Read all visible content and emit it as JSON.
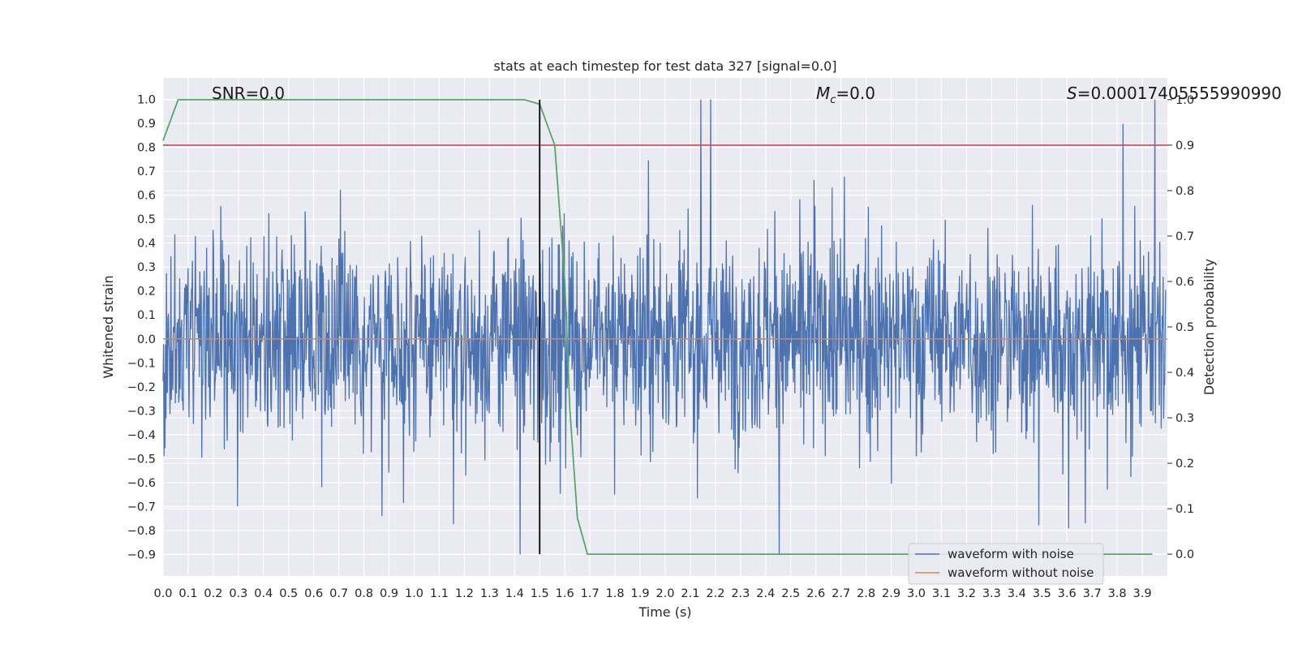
{
  "chart_data": {
    "type": "line",
    "title": "stats at each timestep for test data 327 [signal=0.0]",
    "xlabel": "Time (s)",
    "ylabel": "Whitened strain",
    "ylabel_right": "Detection probability",
    "xlim": [
      0.0,
      4.0
    ],
    "ylim": [
      -0.99,
      1.09
    ],
    "ylim_right": [
      -0.048,
      1.048
    ],
    "x_ticks": [
      "0.0",
      "0.1",
      "0.2",
      "0.3",
      "0.4",
      "0.5",
      "0.6",
      "0.7",
      "0.8",
      "0.9",
      "1.0",
      "1.1",
      "1.2",
      "1.3",
      "1.4",
      "1.5",
      "1.6",
      "1.7",
      "1.8",
      "1.9",
      "2.0",
      "2.1",
      "2.2",
      "2.3",
      "2.4",
      "2.5",
      "2.6",
      "2.7",
      "2.8",
      "2.9",
      "3.0",
      "3.1",
      "3.2",
      "3.3",
      "3.4",
      "3.5",
      "3.6",
      "3.7",
      "3.8",
      "3.9"
    ],
    "y_ticks": [
      "1.0",
      "0.9",
      "0.8",
      "0.7",
      "0.6",
      "0.5",
      "0.4",
      "0.3",
      "0.2",
      "0.1",
      "0.0",
      "−0.1",
      "−0.2",
      "−0.3",
      "−0.4",
      "−0.5",
      "−0.6",
      "−0.7",
      "−0.8",
      "−0.9"
    ],
    "y_ticks_right": [
      "1.0",
      "0.9",
      "0.8",
      "0.7",
      "0.6",
      "0.5",
      "0.4",
      "0.3",
      "0.2",
      "0.1",
      "0.0"
    ],
    "annotations": {
      "snr": "SNR=0.0",
      "mc": "=0.0",
      "mc_symbol": "M",
      "mc_sub": "c",
      "s": "=0.00017405555990990",
      "s_symbol": "S"
    },
    "grid": true,
    "legend_position": "lower-right",
    "series": [
      {
        "name": "waveform with noise",
        "color": "#4c72b0",
        "description": "noisy whitened strain, amplitude roughly -0.9 to 1.0"
      },
      {
        "name": "waveform without noise",
        "color": "#dd8452",
        "constant": 0.0
      },
      {
        "name": "detection probability",
        "color": "#55a868",
        "axis": "right",
        "x": [
          0.0,
          0.06,
          0.12,
          0.2,
          0.5,
          1.0,
          1.4,
          1.44,
          1.5,
          1.56,
          1.6,
          1.62,
          1.65,
          1.69,
          1.75,
          2.0,
          3.0,
          3.5,
          3.94
        ],
        "values": [
          0.91,
          1.0,
          1.0,
          1.0,
          1.0,
          1.0,
          1.0,
          1.0,
          0.99,
          0.9,
          0.6,
          0.32,
          0.08,
          0.0,
          0.0,
          0.0,
          0.0,
          0.0,
          0.0
        ]
      },
      {
        "name": "threshold",
        "color": "#c44e52",
        "axis": "right",
        "constant": 0.9
      },
      {
        "name": "trigger time",
        "color": "#000000",
        "vertical_x": 1.5
      }
    ]
  }
}
